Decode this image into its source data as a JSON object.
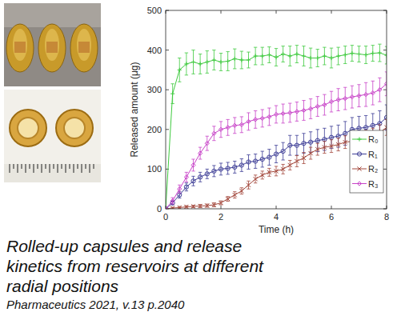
{
  "chart_data": {
    "type": "line",
    "x_label": "Time (h)",
    "y_label": "Released amount (μg)",
    "xlim": [
      0,
      8
    ],
    "xticks": [
      0,
      2,
      4,
      6,
      8
    ],
    "ylim": [
      0,
      500
    ],
    "yticks": [
      0,
      100,
      200,
      300,
      400,
      500
    ],
    "grid": false,
    "legend": "lower-right",
    "x": [
      0,
      0.25,
      0.5,
      0.75,
      1,
      1.25,
      1.5,
      1.75,
      2,
      2.25,
      2.5,
      2.75,
      3,
      3.25,
      3.5,
      3.75,
      4,
      4.25,
      4.5,
      4.75,
      5,
      5.25,
      5.5,
      5.75,
      6,
      6.25,
      6.5,
      6.75,
      7,
      7.25,
      7.5,
      7.75,
      8
    ],
    "series": [
      {
        "name": "R₀",
        "color": "#3fca3f",
        "marker": "plus",
        "values": [
          0,
          290,
          350,
          365,
          370,
          365,
          370,
          375,
          370,
          372,
          378,
          375,
          375,
          385,
          385,
          388,
          382,
          390,
          385,
          390,
          385,
          380,
          380,
          385,
          380,
          385,
          388,
          392,
          390,
          388,
          392,
          393,
          387
        ],
        "errors": [
          0,
          25,
          30,
          28,
          30,
          25,
          28,
          25,
          22,
          24,
          25,
          22,
          20,
          22,
          22,
          20,
          22,
          20,
          25,
          22,
          25,
          25,
          22,
          22,
          25,
          22,
          22,
          20,
          20,
          22,
          20,
          22,
          22
        ]
      },
      {
        "name": "R₁",
        "color": "#3c3c96",
        "marker": "circle",
        "values": [
          0,
          15,
          35,
          55,
          70,
          80,
          88,
          95,
          100,
          102,
          105,
          110,
          118,
          120,
          125,
          130,
          138,
          145,
          160,
          160,
          165,
          168,
          172,
          175,
          180,
          183,
          190,
          200,
          203,
          205,
          210,
          215,
          230
        ],
        "errors": [
          0,
          5,
          8,
          10,
          12,
          12,
          12,
          14,
          15,
          15,
          15,
          16,
          18,
          18,
          20,
          20,
          22,
          22,
          25,
          25,
          25,
          26,
          28,
          28,
          28,
          28,
          30,
          30,
          30,
          30,
          30,
          32,
          32
        ]
      },
      {
        "name": "R₂",
        "color": "#a3483c",
        "marker": "x",
        "values": [
          0,
          2,
          3,
          5,
          6,
          7,
          8,
          10,
          15,
          25,
          35,
          45,
          60,
          75,
          85,
          92,
          95,
          100,
          110,
          120,
          128,
          140,
          150,
          155,
          158,
          162,
          168,
          170,
          175,
          180,
          185,
          192,
          205
        ],
        "errors": [
          0,
          2,
          3,
          3,
          3,
          4,
          4,
          5,
          5,
          6,
          8,
          8,
          10,
          10,
          10,
          10,
          12,
          12,
          12,
          14,
          14,
          15,
          15,
          15,
          16,
          16,
          16,
          18,
          18,
          18,
          18,
          20,
          20
        ]
      },
      {
        "name": "R₃",
        "color": "#c843c8",
        "marker": "diamond",
        "values": [
          0,
          20,
          50,
          80,
          110,
          140,
          165,
          190,
          200,
          205,
          210,
          212,
          220,
          225,
          228,
          232,
          238,
          240,
          242,
          245,
          248,
          252,
          258,
          262,
          270,
          275,
          278,
          282,
          285,
          288,
          292,
          300,
          315
        ],
        "errors": [
          0,
          8,
          10,
          12,
          15,
          15,
          18,
          18,
          20,
          20,
          20,
          20,
          22,
          22,
          22,
          22,
          22,
          24,
          24,
          24,
          25,
          25,
          25,
          26,
          26,
          28,
          28,
          28,
          28,
          30,
          30,
          30,
          30
        ]
      }
    ]
  },
  "caption": {
    "title_lines": [
      "Rolled-up capsules and release",
      "kinetics from reservoirs at different",
      "radial positions"
    ],
    "source": "Pharmaceutics 2021, v.13 p.2040"
  }
}
